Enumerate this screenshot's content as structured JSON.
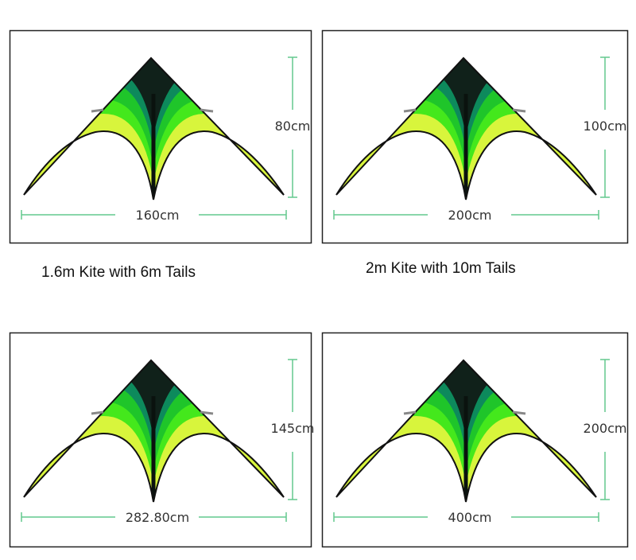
{
  "panels": [
    {
      "width_label": "160cm",
      "height_label": "80cm"
    },
    {
      "width_label": "200cm",
      "height_label": "100cm"
    },
    {
      "width_label": "282.80cm",
      "height_label": "145cm"
    },
    {
      "width_label": "400cm",
      "height_label": "200cm"
    }
  ],
  "captions": [
    "1.6m Kite with 6m Tails",
    "2m Kite with 10m Tails"
  ]
}
